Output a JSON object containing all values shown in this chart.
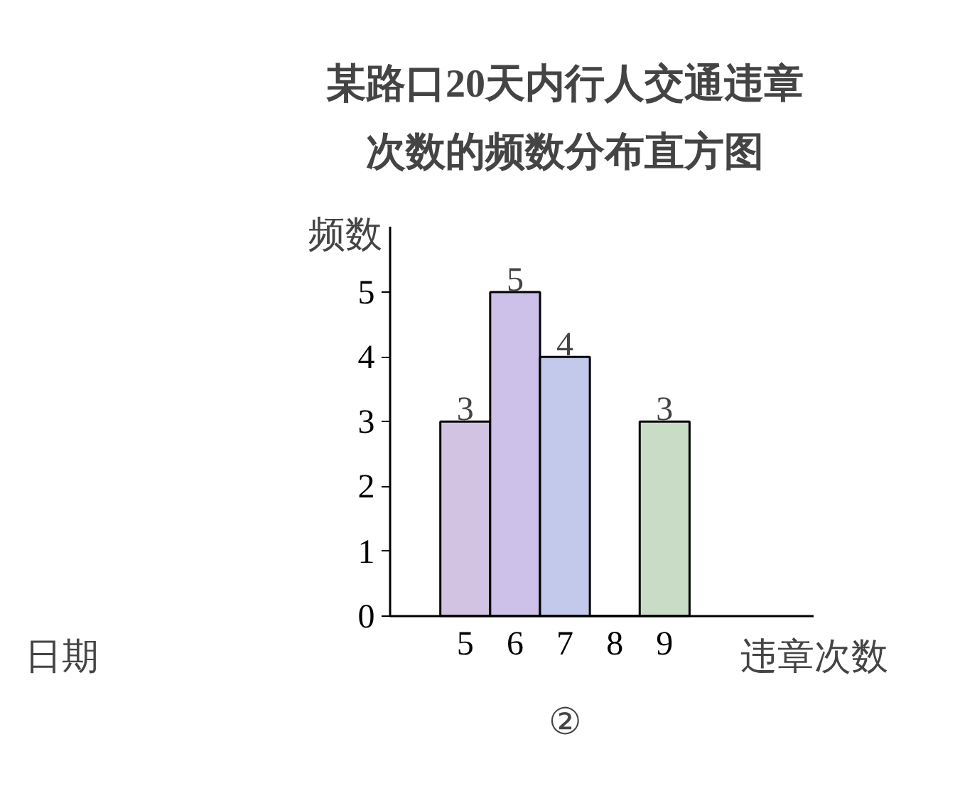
{
  "chart_data": {
    "type": "bar",
    "title": "某路口20天内行人交通违章次数的频数分布直方图",
    "xlabel": "违章次数",
    "ylabel": "频数",
    "categories": [
      "5",
      "6",
      "7",
      "8",
      "9"
    ],
    "values": [
      3,
      5,
      4,
      0,
      3
    ],
    "colors": [
      "#d2c3e2",
      "#cdc1ea",
      "#c3c9ea",
      "#cfe0d4",
      "#c9dcc6"
    ],
    "value_labels": [
      "3",
      "5",
      "4",
      null,
      "3"
    ],
    "ylim": [
      0,
      6
    ],
    "yticks": [
      0,
      1,
      2,
      3,
      4,
      5
    ],
    "grid": false,
    "annotations": [
      "②",
      "日期"
    ]
  }
}
